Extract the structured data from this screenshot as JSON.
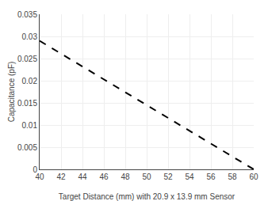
{
  "chart_data": {
    "type": "line",
    "x": [
      40,
      60
    ],
    "values": [
      0.029,
      0.0
    ],
    "color": "#000000",
    "line_style": "dashed",
    "xlabel": "Target Distance (mm) with 20.9 x 13.9 mm Sensor",
    "ylabel": "Capacitance (pF)",
    "xlim": [
      40,
      60
    ],
    "ylim": [
      0,
      0.035
    ],
    "xticks": [
      40,
      42,
      44,
      46,
      48,
      50,
      52,
      54,
      56,
      58,
      60
    ],
    "yticks": [
      0,
      0.005,
      0.01,
      0.015,
      0.02,
      0.025,
      0.03,
      0.035
    ],
    "grid": true
  }
}
